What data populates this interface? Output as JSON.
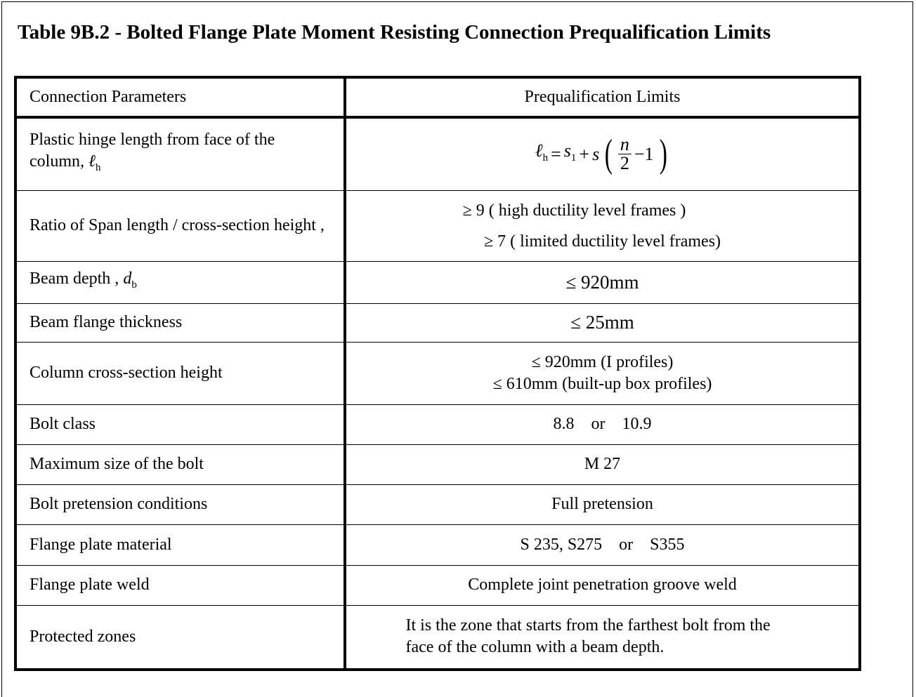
{
  "title": "Table 9B.2 - Bolted Flange Plate Moment Resisting Connection Prequalification Limits",
  "headers": [
    "Connection Parameters",
    "Prequalification Limits"
  ],
  "rows": [
    {
      "param": "Plastic hinge length from face of the column, ",
      "param_symbol": "ℓ",
      "param_sub": "h",
      "formula": {
        "lhs": "ℓ",
        "lhs_sub": "h",
        "eq": "= ",
        "s1": "s",
        "s1_sub": "1",
        "plus": " + ",
        "s": "s",
        "num": "n",
        "den": "2",
        "minus1": "−1"
      }
    },
    {
      "param": "Ratio of Span length / cross-section height ,",
      "limits": [
        "≥ 9  ( high ductility level frames )",
        "≥ 7  ( limited ductility level frames)"
      ]
    },
    {
      "param": "Beam depth , ",
      "param_symbol": "d",
      "param_sub": "b",
      "limits": [
        "≤ 920mm"
      ]
    },
    {
      "param": "Beam flange thickness",
      "limits": [
        "≤ 25mm"
      ]
    },
    {
      "param": "Column cross-section height",
      "limits": [
        "≤ 920mm  (I profiles)",
        "≤ 610mm  (built-up box profiles)"
      ]
    },
    {
      "param": "Bolt class",
      "limits": [
        "8.8    or    10.9"
      ]
    },
    {
      "param": "Maximum size of the bolt",
      "limits": [
        "M 27"
      ]
    },
    {
      "param": "Bolt pretension conditions",
      "limits": [
        "Full pretension"
      ]
    },
    {
      "param": "Flange plate material",
      "limits": [
        "S 235, S275    or    S355"
      ]
    },
    {
      "param": "Flange plate weld",
      "limits": [
        "Complete joint penetration groove weld"
      ]
    },
    {
      "param": "Protected zones",
      "limits": [
        "It is the zone that starts from the farthest bolt from the face of the column with a beam depth."
      ]
    }
  ]
}
